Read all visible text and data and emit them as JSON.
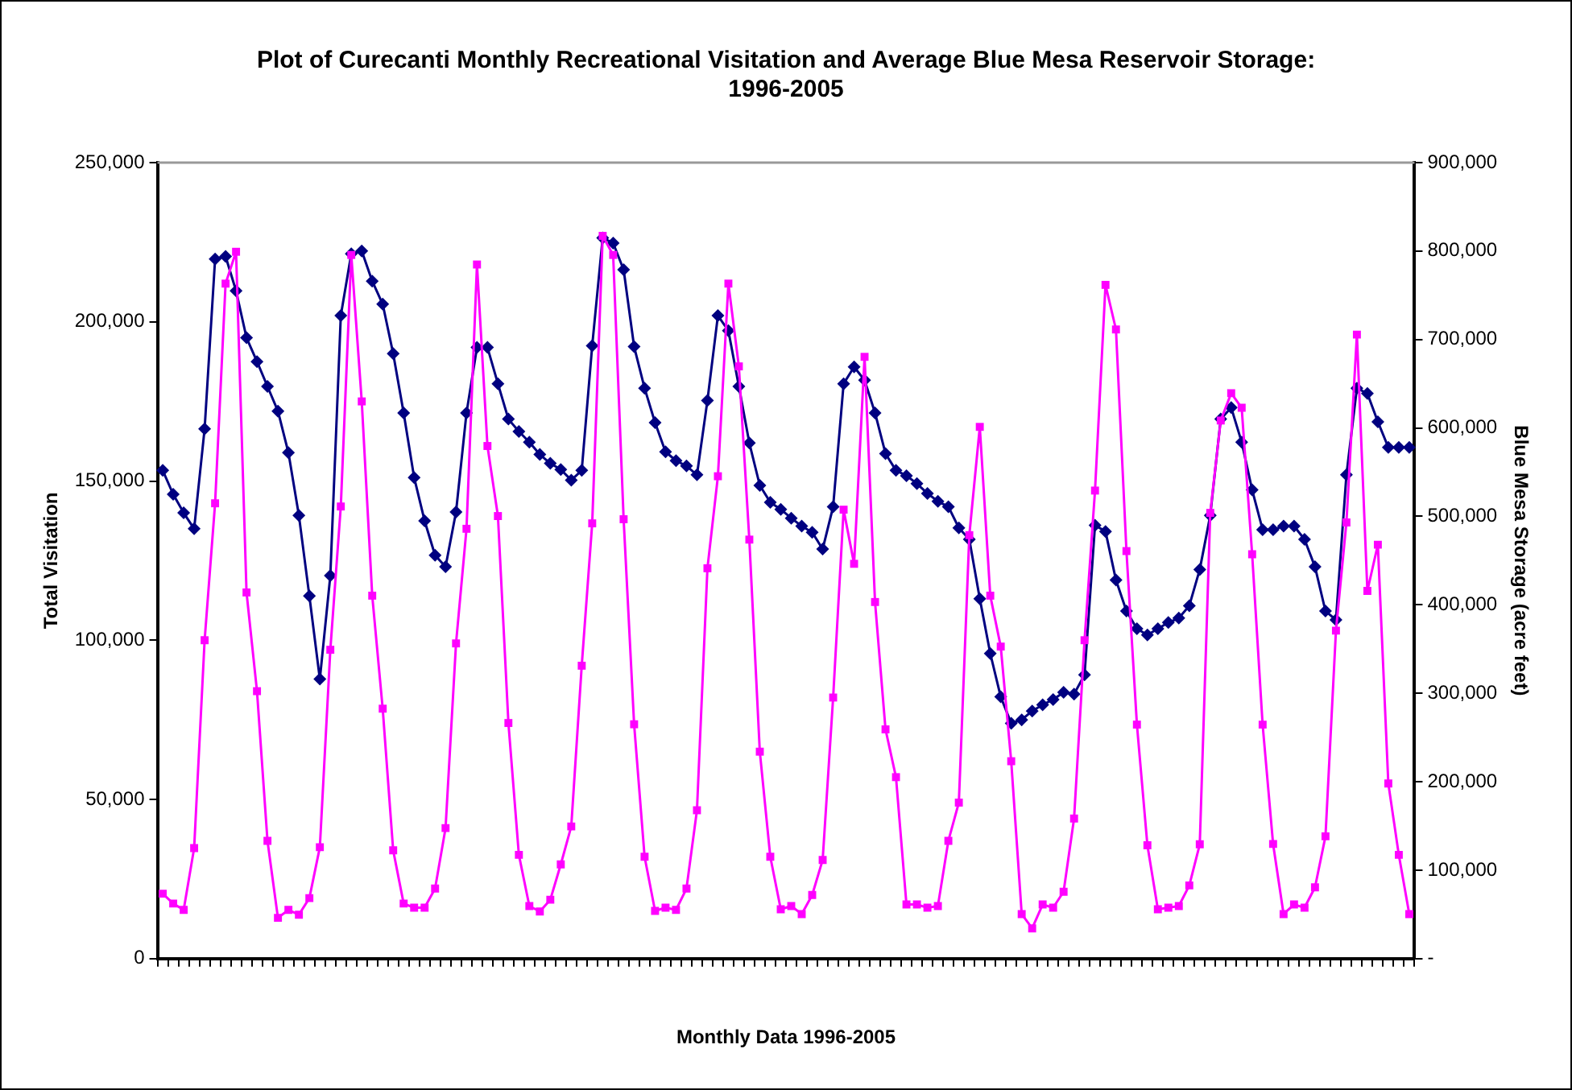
{
  "chart_data": {
    "type": "line",
    "title": "Plot of Curecanti Monthly Recreational Visitation and Average Blue Mesa Reservoir Storage: 1996-2005",
    "xlabel": "Monthly Data 1996-2005",
    "ylabel": "Total Visitation",
    "y2label": "Blue Mesa Storage (acre feet)",
    "categories": [
      null,
      null,
      null,
      null,
      null,
      null,
      null,
      null,
      null,
      null,
      null,
      null,
      null,
      null,
      null,
      null,
      null,
      null,
      null,
      null,
      null,
      null,
      null,
      null,
      null,
      null,
      null,
      null,
      null,
      null,
      null,
      null,
      null,
      null,
      null,
      null,
      null,
      null,
      null,
      null,
      null,
      null,
      null,
      null,
      null,
      null,
      null,
      null,
      null,
      null,
      null,
      null,
      null,
      null,
      null,
      null,
      null,
      null,
      null,
      null,
      null,
      null,
      null,
      null,
      null,
      null,
      null,
      null,
      null,
      null,
      null,
      null,
      null,
      null,
      null,
      null,
      null,
      null,
      null,
      null,
      null,
      null,
      null,
      null,
      null,
      null,
      null,
      null,
      null,
      null,
      null,
      null,
      null,
      null,
      null,
      null,
      null,
      null,
      null,
      null,
      null,
      null,
      null,
      null,
      null,
      null,
      null,
      null,
      null,
      null,
      null,
      null,
      null,
      null,
      null,
      null,
      null,
      null,
      null,
      null
    ],
    "series": [
      {
        "color": "#ff00ff",
        "marker": "square",
        "values": [
          20400,
          17300,
          15300,
          34700,
          100000,
          143000,
          212000,
          222000,
          115000,
          84000,
          37000,
          12800,
          15300,
          13800,
          19000,
          35000,
          97000,
          142000,
          221000,
          175000,
          114000,
          78500,
          34000,
          17300,
          16000,
          16000,
          22000,
          41000,
          99000,
          135000,
          218000,
          161000,
          139000,
          74000,
          32600,
          16500,
          14800,
          18500,
          29600,
          41500,
          92000,
          136700,
          227000,
          221000,
          138000,
          73600,
          32000,
          15000,
          16000,
          15300,
          22000,
          46600,
          122600,
          151500,
          212000,
          186000,
          131600,
          65000,
          32000,
          15500,
          16500,
          14000,
          20000,
          31000,
          82000,
          141000,
          124000,
          189000,
          112000,
          72000,
          57000,
          17000,
          17000,
          16000,
          16500,
          37000,
          49000,
          133000,
          167000,
          114000,
          98000,
          62000,
          14000,
          9500,
          17000,
          16000,
          21000,
          44000,
          100000,
          147000,
          211600,
          197600,
          128000,
          73500,
          35600,
          15500,
          16000,
          16500,
          23000,
          35900,
          140000,
          169000,
          177600,
          173000,
          127000,
          73500,
          36000,
          14000,
          17000,
          16000,
          22400,
          38400,
          103000,
          137000,
          196000,
          115500,
          130000,
          55000,
          32600,
          14000
        ]
      },
      {
        "color": "#000080",
        "marker": "diamond",
        "axis": "y2",
        "values": [
          552000,
          525000,
          504000,
          486000,
          599000,
          791000,
          794000,
          755000,
          702000,
          675000,
          647000,
          619000,
          572000,
          501000,
          410000,
          316000,
          433000,
          727000,
          797000,
          800000,
          766000,
          740000,
          684000,
          617000,
          544000,
          495000,
          456000,
          443000,
          505000,
          617000,
          691000,
          691000,
          650000,
          610000,
          596000,
          584000,
          570000,
          560000,
          553000,
          541000,
          552000,
          693000,
          815000,
          809000,
          779000,
          692000,
          645000,
          606000,
          573000,
          563000,
          557000,
          547000,
          631000,
          727000,
          710000,
          647000,
          583000,
          535000,
          516000,
          508000,
          498000,
          489000,
          482000,
          463000,
          511000,
          650000,
          669000,
          654000,
          617000,
          571000,
          552000,
          546000,
          537000,
          526000,
          517000,
          511000,
          487000,
          474000,
          407000,
          345000,
          296000,
          266000,
          270000,
          280000,
          287000,
          293000,
          301000,
          299000,
          321000,
          490000,
          483000,
          428000,
          393000,
          373000,
          366000,
          373000,
          380000,
          385000,
          399000,
          440000,
          501000,
          610000,
          623000,
          584000,
          530000,
          485000,
          485000,
          489000,
          489000,
          474000,
          443000,
          393000,
          383000,
          547000,
          645000,
          639000,
          607000,
          578000,
          578000,
          578000
        ]
      }
    ],
    "ylim": [
      0,
      250000
    ],
    "yticks": [
      0,
      {
        "value": 50000,
        "label": "50,000"
      },
      {
        "value": 100000,
        "label": "100,000"
      },
      {
        "value": 150000,
        "label": "150,000"
      },
      {
        "value": 200000,
        "label": "200,000"
      },
      {
        "value": 250000,
        "label": "250,000"
      }
    ],
    "y2lim": [
      0,
      900000
    ],
    "y2ticks": [
      {
        "value": 0,
        "label": "-"
      },
      {
        "value": 100000,
        "label": "100,000"
      },
      {
        "value": 200000,
        "label": "200,000"
      },
      {
        "value": 300000,
        "label": "300,000"
      },
      {
        "value": 400000,
        "label": "400,000"
      },
      {
        "value": 500000,
        "label": "500,000"
      },
      {
        "value": 600000,
        "label": "600,000"
      },
      {
        "value": 700000,
        "label": "700,000"
      },
      {
        "value": 800000,
        "label": "800,000"
      },
      {
        "value": 900000,
        "label": "900,000"
      }
    ],
    "grid": false,
    "legend": false
  }
}
